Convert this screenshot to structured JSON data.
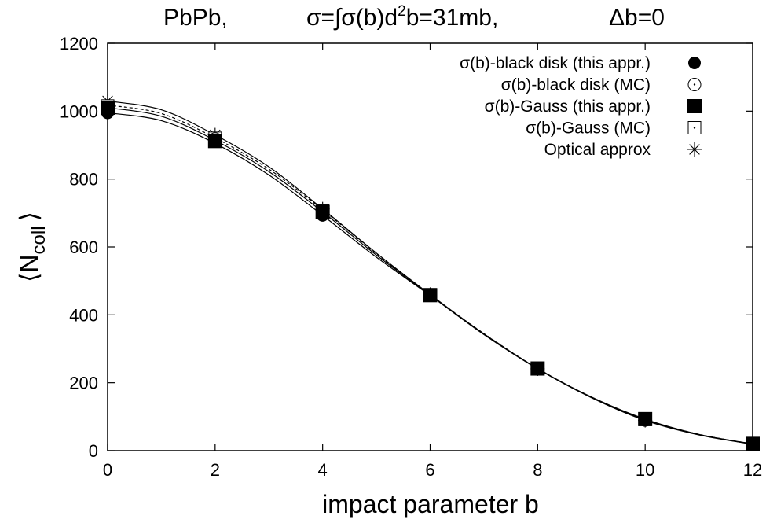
{
  "chart_data": {
    "type": "line",
    "title": {
      "system": "PbPb,",
      "sigma_prefix": "σ=∫σ(b)d",
      "sigma_sup": "2",
      "sigma_suffix": "b=31mb,",
      "delta": "Δb=0"
    },
    "xlabel": "impact parameter b",
    "ylabel": {
      "open": "⟨N",
      "sub": "coll",
      "close": "⟩"
    },
    "xlim": [
      0,
      12
    ],
    "ylim": [
      0,
      1200
    ],
    "xticks": [
      0,
      2,
      4,
      6,
      8,
      10,
      12
    ],
    "yticks": [
      0,
      200,
      400,
      600,
      800,
      1000,
      1200
    ],
    "grid": false,
    "legend_position": "top-right",
    "series": [
      {
        "name": "σ(b)-black disk (this appr.)",
        "marker": "filled-circle",
        "x": [
          0,
          2,
          4,
          6,
          8,
          10,
          12
        ],
        "y": [
          995,
          915,
          693,
          457,
          241,
          90,
          20
        ]
      },
      {
        "name": "σ(b)-black disk (MC)",
        "marker": "open-circle-dot",
        "x": [
          0,
          2,
          4,
          6,
          8,
          10,
          12
        ],
        "y": [
          1000,
          918,
          698,
          458,
          241,
          90,
          20
        ]
      },
      {
        "name": "σ(b)-Gauss (this appr.)",
        "marker": "filled-square",
        "x": [
          0,
          2,
          4,
          6,
          8,
          10,
          12
        ],
        "y": [
          1010,
          912,
          703,
          458,
          242,
          93,
          20
        ]
      },
      {
        "name": "σ(b)-Gauss (MC)",
        "marker": "open-square-dot",
        "x": [
          0,
          2,
          4,
          6,
          8,
          10,
          12
        ],
        "y": [
          1015,
          920,
          706,
          459,
          242,
          92,
          20
        ]
      },
      {
        "name": "Optical approx",
        "marker": "asterisk",
        "x": [
          0,
          2,
          4,
          6,
          8,
          10,
          12
        ],
        "y": [
          1030,
          930,
          712,
          460,
          241,
          89,
          19
        ]
      }
    ],
    "curves": [
      {
        "style": "solid",
        "x": [
          0,
          1,
          2,
          3,
          4,
          5,
          6,
          7,
          8,
          9,
          10,
          11,
          12
        ],
        "y": [
          995,
          972,
          905,
          812,
          693,
          570,
          457,
          342,
          241,
          157,
          90,
          47,
          19
        ]
      },
      {
        "style": "solid",
        "x": [
          0,
          1,
          2,
          3,
          4,
          5,
          6,
          7,
          8,
          9,
          10,
          11,
          12
        ],
        "y": [
          1010,
          985,
          914,
          822,
          703,
          576,
          458,
          344,
          242,
          158,
          93,
          48,
          20
        ]
      },
      {
        "style": "dashed",
        "x": [
          0,
          1,
          2,
          3,
          4,
          5,
          6,
          7,
          8,
          9,
          10,
          11,
          12
        ],
        "y": [
          1018,
          993,
          921,
          829,
          709,
          580,
          459,
          345,
          242,
          158,
          92,
          48,
          20
        ]
      },
      {
        "style": "solid",
        "x": [
          0,
          1,
          2,
          3,
          4,
          5,
          6,
          7,
          8,
          9,
          10,
          11,
          12
        ],
        "y": [
          1030,
          1004,
          930,
          836,
          712,
          582,
          460,
          344,
          241,
          156,
          89,
          46,
          19
        ]
      }
    ]
  }
}
